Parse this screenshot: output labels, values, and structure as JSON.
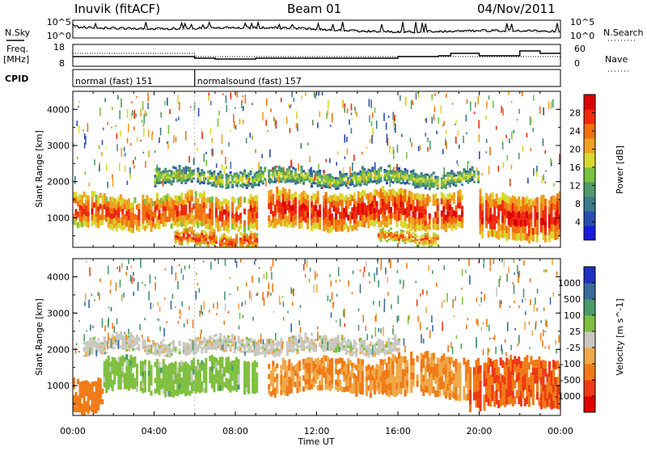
{
  "header": {
    "station": "Inuvik (fitACF)",
    "beam": "Beam 01",
    "date": "04/Nov/2011"
  },
  "left_labels": {
    "nsky": "N.Sky",
    "freq": "Freq.",
    "freq_unit": "[MHz]",
    "cpid": "CPID"
  },
  "right_labels": {
    "nsearch": "N.Search",
    "nave": "Nave"
  },
  "noise_panel": {
    "left_ticks": [
      "10^5",
      "10^0"
    ],
    "right_ticks": [
      "10^5",
      "10^0"
    ]
  },
  "freq_panel": {
    "left_ticks": [
      "18",
      "8"
    ],
    "right_ticks": [
      "60",
      "0"
    ]
  },
  "cpid_panel": {
    "segments": [
      {
        "label": "normal (fast) 151",
        "start_hour": 0,
        "end_hour": 6
      },
      {
        "label": "normalsound (fast) 157",
        "start_hour": 6,
        "end_hour": 24
      }
    ]
  },
  "colors": {
    "power_scale": [
      "#1a1adc",
      "#2a4db0",
      "#3c7a8c",
      "#4f9a6a",
      "#7cc040",
      "#d8d830",
      "#f0a020",
      "#f07010",
      "#ee2a10",
      "#e00000"
    ],
    "velocity_scale": [
      "#e00000",
      "#ee3a14",
      "#f07a18",
      "#f0a848",
      "#c8c8c0",
      "#80c040",
      "#4a9a6a",
      "#3a6a9a",
      "#2030c0"
    ],
    "noise_line": "#000000"
  },
  "power_colorbar": {
    "label": "Power [dB]",
    "ticks": [
      "28",
      "24",
      "20",
      "16",
      "12",
      "8",
      "4"
    ]
  },
  "velocity_colorbar": {
    "label": "Velocity [m s^-1]",
    "ticks": [
      "1000",
      "500",
      "100",
      "25",
      "-25",
      "-100",
      "-500",
      "-1000"
    ]
  },
  "chart_data": [
    {
      "type": "heatmap",
      "name": "power",
      "ylabel": "Slant Range [km]",
      "xlabel": "Time UT",
      "x_ticks": [
        "00:00",
        "04:00",
        "08:00",
        "12:00",
        "16:00",
        "20:00",
        "00:00"
      ],
      "y_ticks": [
        "1000",
        "2000",
        "3000",
        "4000"
      ],
      "xlim_hours": [
        0,
        24
      ],
      "ylim_km": [
        180,
        4500
      ],
      "clim_db": [
        0,
        32
      ],
      "features": [
        {
          "label": "main band",
          "start_hour": 0.0,
          "end_hour": 9.0,
          "range_km_low": 700,
          "range_km_high": 1600,
          "level_db": 26
        },
        {
          "label": "main band",
          "start_hour": 9.6,
          "end_hour": 19.2,
          "range_km_low": 700,
          "range_km_high": 1700,
          "level_db": 28
        },
        {
          "label": "main band",
          "start_hour": 20.0,
          "end_hour": 24.0,
          "range_km_low": 400,
          "range_km_high": 1600,
          "level_db": 28
        },
        {
          "label": "near range",
          "start_hour": 5.0,
          "end_hour": 9.0,
          "range_km_low": 200,
          "range_km_high": 600,
          "level_db": 26
        },
        {
          "label": "near range",
          "start_hour": 15.0,
          "end_hour": 18.0,
          "range_km_low": 300,
          "range_km_high": 600,
          "level_db": 24
        },
        {
          "label": "upper band",
          "start_hour": 4.0,
          "end_hour": 20.0,
          "range_km_low": 1900,
          "range_km_high": 2300,
          "level_db": 16
        }
      ]
    },
    {
      "type": "heatmap",
      "name": "velocity",
      "ylabel": "Slant Range [km]",
      "xlabel": "Time UT",
      "x_ticks": [
        "00:00",
        "04:00",
        "08:00",
        "12:00",
        "16:00",
        "20:00",
        "00:00"
      ],
      "y_ticks": [
        "1000",
        "2000",
        "3000",
        "4000"
      ],
      "xlim_hours": [
        0,
        24
      ],
      "ylim_km": [
        180,
        4500
      ],
      "clim_ms": [
        -1000,
        1000
      ],
      "features": [
        {
          "label": "main band",
          "start_hour": 1.5,
          "end_hour": 9.0,
          "range_km_low": 800,
          "range_km_high": 1700,
          "level_ms": 60
        },
        {
          "label": "main band",
          "start_hour": 9.6,
          "end_hour": 15.5,
          "range_km_low": 800,
          "range_km_high": 1700,
          "level_ms": -100
        },
        {
          "label": "main band",
          "start_hour": 15.5,
          "end_hour": 19.5,
          "range_km_low": 700,
          "range_km_high": 1800,
          "level_ms": -100
        },
        {
          "label": "main band",
          "start_hour": 19.5,
          "end_hour": 24.0,
          "range_km_low": 400,
          "range_km_high": 1700,
          "level_ms": -500
        },
        {
          "label": "near range",
          "start_hour": 0.0,
          "end_hour": 1.5,
          "range_km_low": 300,
          "range_km_high": 1200,
          "level_ms": -200
        },
        {
          "label": "upper band",
          "start_hour": 0.5,
          "end_hour": 16.0,
          "range_km_low": 1900,
          "range_km_high": 2300,
          "level_ms": 0
        }
      ]
    }
  ]
}
